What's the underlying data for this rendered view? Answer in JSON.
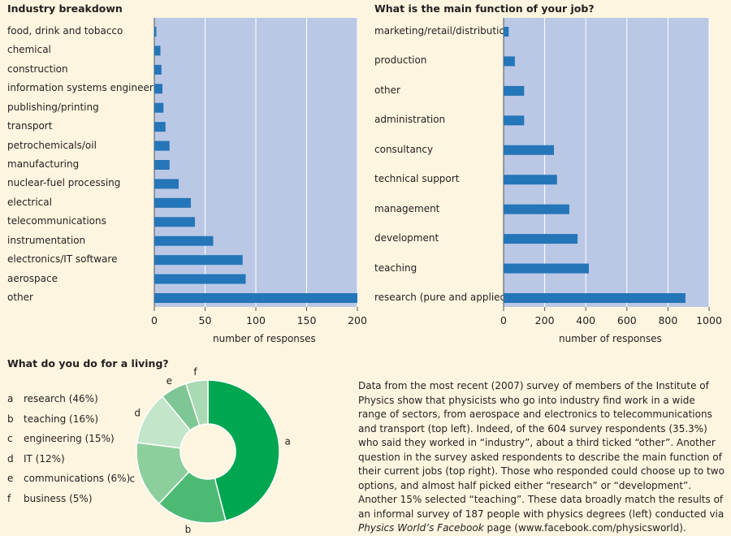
{
  "chart_data": [
    {
      "type": "bar",
      "orientation": "horizontal",
      "title": "Industry breakdown",
      "xlabel": "number of responses",
      "xlim": [
        0,
        200
      ],
      "xticks": [
        "0",
        "50",
        "100",
        "150",
        "200"
      ],
      "categories": [
        "food, drink and tobacco",
        "chemical",
        "construction",
        "information systems engineering",
        "publishing/printing",
        "transport",
        "petrochemicals/oil",
        "manufacturing",
        "nuclear-fuel processing",
        "electrical",
        "telecommunications",
        "instrumentation",
        "electronics/IT software",
        "aerospace",
        "other"
      ],
      "values": [
        2,
        6,
        7,
        8,
        9,
        11,
        15,
        15,
        24,
        36,
        40,
        58,
        87,
        90,
        200
      ],
      "grid": true
    },
    {
      "type": "bar",
      "orientation": "horizontal",
      "title": "What is the main function of your job?",
      "xlabel": "number of responses",
      "xlim": [
        0,
        1000
      ],
      "xticks": [
        "0",
        "200",
        "400",
        "600",
        "800",
        "1000"
      ],
      "categories": [
        "marketing/retail/distribution",
        "production",
        "other",
        "administration",
        "consultancy",
        "technical support",
        "management",
        "development",
        "teaching",
        "research (pure and applied)"
      ],
      "values": [
        25,
        55,
        100,
        100,
        245,
        260,
        320,
        360,
        415,
        885
      ],
      "grid": true
    },
    {
      "type": "pie",
      "donut": true,
      "title": "What do you do for a living?",
      "categories": [
        "research",
        "teaching",
        "engineering",
        "IT",
        "communications",
        "business"
      ],
      "keys": [
        "a",
        "b",
        "c",
        "d",
        "e",
        "f"
      ],
      "legend_labels": [
        "research (46%)",
        "teaching (16%)",
        "engineering (15%)",
        "IT (12%)",
        "communications (6%)",
        "business (5%)"
      ],
      "values": [
        46,
        16,
        15,
        12,
        6,
        5
      ],
      "colors": [
        "#00a650",
        "#4dba74",
        "#8ccf9c",
        "#c3e5c9",
        "#7ec795",
        "#a9dab3"
      ]
    }
  ],
  "colors": {
    "background": "#fdf5df",
    "plot_bg": "#bac8e6",
    "bar": "#2576b8",
    "grid": "#ffffff"
  },
  "caption": {
    "text_1": "Data from the most recent (2007) survey of members of the Institute of Physics show that physicists who go into industry find work in a wide range of sectors, from aerospace and electronics to telecommunications and transport (top left). Indeed, of the 604 survey respondents (35.3%) who said they worked in “industry”, about a third ticked “other”. Another question in the survey asked respondents to describe the main function of their current jobs (top right). Those who responded could choose up to two options, and almost half picked either “research” or “development”. Another 15% selected “teaching”. These data broadly match the results of an informal survey of 187 people with physics degrees (left) conducted via ",
    "italic": "Physics World’s Facebook",
    "text_2": " page (www.facebook.com/physicsworld)."
  }
}
